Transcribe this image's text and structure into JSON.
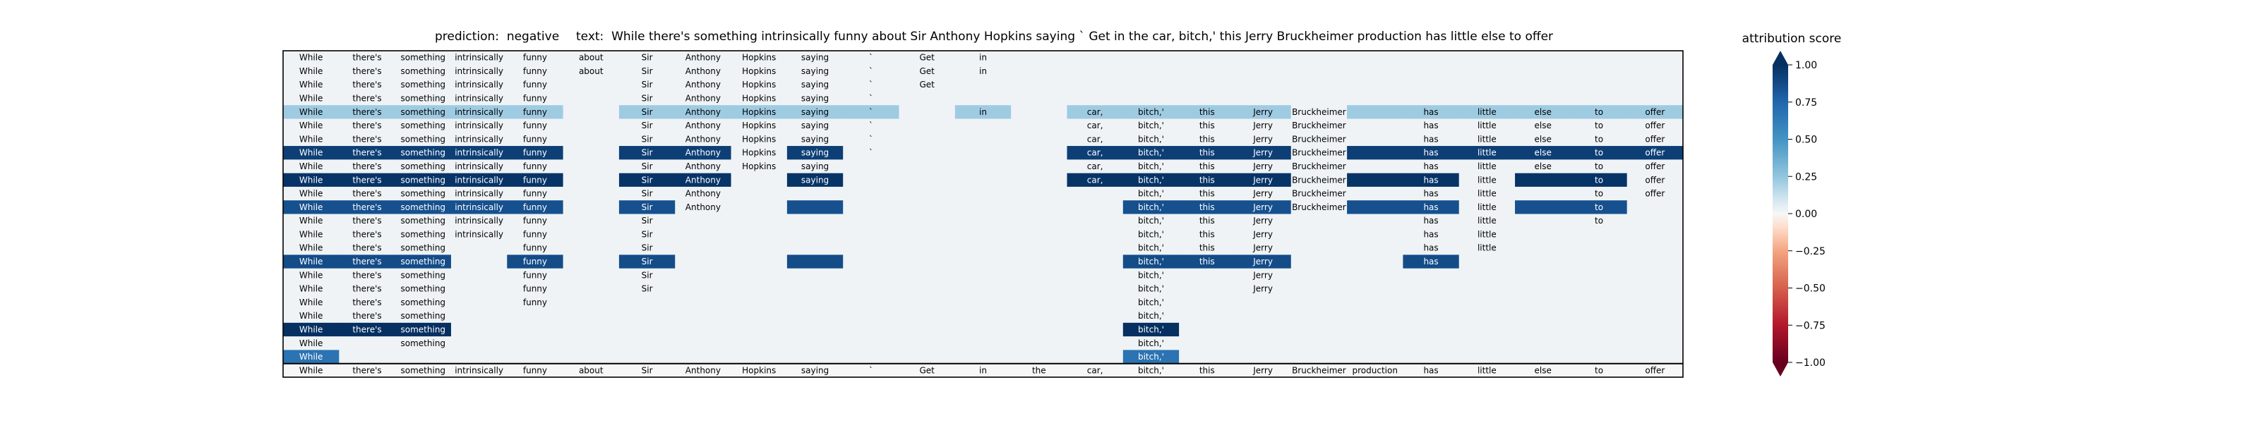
{
  "title": {
    "prediction": "prediction:  negative",
    "text": "text:  While there's something intrinsically funny about Sir Anthony Hopkins saying ` Get in the car, bitch,' this Jerry Bruckheimer production has little else to offer"
  },
  "colorbar": {
    "title": "attribution score",
    "ticks": [
      "1.00",
      "0.75",
      "0.50",
      "0.25",
      "0.00",
      "−0.25",
      "−0.50",
      "−0.75",
      "−1.00"
    ],
    "range": [
      -1,
      1
    ],
    "colormap": "RdBu"
  },
  "chart_data": {
    "type": "heatmap",
    "tokens": [
      "While",
      "there's",
      "something",
      "intrinsically",
      "funny",
      "about",
      "Sir",
      "Anthony",
      "Hopkins",
      "saying",
      "`",
      "Get",
      "in",
      "the",
      "car,",
      "bitch,'",
      "this",
      "Jerry",
      "Bruckheimer",
      "production",
      "has",
      "little",
      "else",
      "to",
      "offer"
    ],
    "masks": [
      "1111111111111000000000000",
      "1111111111111000000000000",
      "1111101111110000000000000",
      "1111101111100000000000000",
      "1111101111101011111011111",
      "1111101111100011111011111",
      "1111101111100011111011111",
      "1111101111100011111011111",
      "1111101111000011111011111",
      "1111101101000011111011011",
      "1111101100000001111011011",
      "1111101100000001111011010",
      "1111101000000001110011010",
      "1111101000000001110011000",
      "1110101000000001110011000",
      "1110101000000001110010000",
      "1110101000000001010000000",
      "1110101000000001010000000",
      "1110100000000001000000000",
      "1110000000000001000000000",
      "1110000000000001000000000",
      "1010000000000001000000000",
      "1000000000000001000000000",
      "1111111111111111111111111"
    ],
    "scores": [
      [
        0.02,
        0.02,
        0.02,
        0.02,
        0.02,
        0.02,
        0.02,
        0.02,
        0.02,
        0.02,
        0.02,
        0.02,
        0.02,
        0.02,
        0.02,
        0.02,
        0.02,
        0.02,
        0.02,
        0.02,
        0.02,
        0.02,
        0.02,
        0.02,
        0.02
      ],
      [
        0.02,
        0.02,
        0.02,
        0.02,
        0.02,
        0.02,
        0.02,
        0.02,
        0.02,
        0.02,
        0.02,
        0.02,
        0.02,
        0.02,
        0.02,
        0.02,
        0.02,
        0.02,
        0.02,
        0.02,
        0.02,
        0.02,
        0.02,
        0.02,
        0.02
      ],
      [
        0.02,
        0.02,
        0.02,
        0.02,
        0.02,
        0.02,
        0.02,
        0.02,
        0.02,
        0.02,
        0.02,
        0.02,
        0.02,
        0.02,
        0.02,
        0.02,
        0.02,
        0.02,
        0.02,
        0.02,
        0.02,
        0.02,
        0.02,
        0.02,
        0.02
      ],
      [
        0.02,
        0.02,
        0.02,
        0.02,
        0.02,
        0.02,
        0.02,
        0.02,
        0.02,
        0.02,
        0.02,
        0.02,
        0.02,
        0.02,
        0.02,
        0.02,
        0.02,
        0.02,
        0.02,
        0.02,
        0.02,
        0.02,
        0.02,
        0.02,
        0.02
      ],
      [
        0.22,
        0.22,
        0.22,
        0.22,
        0.22,
        0.02,
        0.22,
        0.22,
        0.22,
        0.22,
        0.22,
        0.02,
        0.22,
        0.02,
        0.22,
        0.22,
        0.22,
        0.22,
        0.02,
        0.22,
        0.22,
        0.22,
        0.22,
        0.22,
        0.22
      ],
      [
        0.02,
        0.02,
        0.02,
        0.02,
        0.02,
        0.02,
        0.02,
        0.02,
        0.02,
        0.02,
        0.02,
        0.02,
        0.02,
        0.02,
        0.02,
        0.02,
        0.02,
        0.02,
        0.02,
        0.02,
        0.02,
        0.02,
        0.02,
        0.02,
        0.02
      ],
      [
        0.02,
        0.02,
        0.02,
        0.02,
        0.02,
        0.02,
        0.02,
        0.02,
        0.02,
        0.02,
        0.02,
        0.02,
        0.02,
        0.02,
        0.02,
        0.02,
        0.02,
        0.02,
        0.02,
        0.02,
        0.02,
        0.02,
        0.02,
        0.02,
        0.02
      ],
      [
        0.93,
        0.93,
        0.93,
        0.93,
        0.93,
        0.02,
        0.93,
        0.93,
        0.02,
        0.93,
        0.02,
        0.02,
        0.02,
        0.02,
        0.93,
        0.93,
        0.93,
        0.93,
        0.02,
        0.93,
        0.93,
        0.93,
        0.93,
        0.93,
        0.93
      ],
      [
        0.02,
        0.02,
        0.02,
        0.02,
        0.02,
        0.02,
        0.02,
        0.02,
        0.02,
        0.02,
        0.02,
        0.02,
        0.02,
        0.02,
        0.02,
        0.02,
        0.02,
        0.02,
        0.02,
        0.02,
        0.02,
        0.02,
        0.02,
        0.02,
        0.02
      ],
      [
        0.98,
        0.98,
        0.98,
        0.98,
        0.98,
        0.02,
        0.98,
        0.98,
        0.02,
        0.98,
        0.02,
        0.02,
        0.02,
        0.02,
        0.98,
        0.98,
        0.98,
        0.98,
        0.02,
        0.98,
        0.98,
        0.02,
        0.98,
        0.98,
        0.02
      ],
      [
        0.02,
        0.02,
        0.02,
        0.02,
        0.02,
        0.02,
        0.02,
        0.02,
        0.02,
        0.02,
        0.02,
        0.02,
        0.02,
        0.02,
        0.02,
        0.02,
        0.02,
        0.02,
        0.02,
        0.02,
        0.02,
        0.02,
        0.02,
        0.02,
        0.02
      ],
      [
        0.85,
        0.85,
        0.85,
        0.85,
        0.85,
        0.02,
        0.85,
        0.02,
        0.02,
        0.85,
        0.02,
        0.02,
        0.02,
        0.02,
        0.02,
        0.85,
        0.85,
        0.85,
        0.02,
        0.85,
        0.85,
        0.02,
        0.85,
        0.85,
        0.02
      ],
      [
        0.02,
        0.02,
        0.02,
        0.02,
        0.02,
        0.02,
        0.02,
        0.02,
        0.02,
        0.02,
        0.02,
        0.02,
        0.02,
        0.02,
        0.02,
        0.02,
        0.02,
        0.02,
        0.02,
        0.02,
        0.02,
        0.02,
        0.02,
        0.02,
        0.02
      ],
      [
        0.02,
        0.02,
        0.02,
        0.02,
        0.02,
        0.02,
        0.02,
        0.02,
        0.02,
        0.02,
        0.02,
        0.02,
        0.02,
        0.02,
        0.02,
        0.02,
        0.02,
        0.02,
        0.02,
        0.02,
        0.02,
        0.02,
        0.02,
        0.02,
        0.02
      ],
      [
        0.02,
        0.02,
        0.02,
        0.02,
        0.02,
        0.02,
        0.02,
        0.02,
        0.02,
        0.02,
        0.02,
        0.02,
        0.02,
        0.02,
        0.02,
        0.02,
        0.02,
        0.02,
        0.02,
        0.02,
        0.02,
        0.02,
        0.02,
        0.02,
        0.02
      ],
      [
        0.87,
        0.87,
        0.87,
        0.02,
        0.87,
        0.02,
        0.87,
        0.02,
        0.02,
        0.87,
        0.02,
        0.02,
        0.02,
        0.02,
        0.02,
        0.87,
        0.87,
        0.87,
        0.02,
        0.02,
        0.87,
        0.02,
        0.02,
        0.02,
        0.02
      ],
      [
        0.02,
        0.02,
        0.02,
        0.02,
        0.02,
        0.02,
        0.02,
        0.02,
        0.02,
        0.02,
        0.02,
        0.02,
        0.02,
        0.02,
        0.02,
        0.02,
        0.02,
        0.02,
        0.02,
        0.02,
        0.02,
        0.02,
        0.02,
        0.02,
        0.02
      ],
      [
        0.02,
        0.02,
        0.02,
        0.02,
        0.02,
        0.02,
        0.02,
        0.02,
        0.02,
        0.02,
        0.02,
        0.02,
        0.02,
        0.02,
        0.02,
        0.02,
        0.02,
        0.02,
        0.02,
        0.02,
        0.02,
        0.02,
        0.02,
        0.02,
        0.02
      ],
      [
        0.02,
        0.02,
        0.02,
        0.02,
        0.02,
        0.02,
        0.02,
        0.02,
        0.02,
        0.02,
        0.02,
        0.02,
        0.02,
        0.02,
        0.02,
        0.02,
        0.02,
        0.02,
        0.02,
        0.02,
        0.02,
        0.02,
        0.02,
        0.02,
        0.02
      ],
      [
        0.02,
        0.02,
        0.02,
        0.02,
        0.02,
        0.02,
        0.02,
        0.02,
        0.02,
        0.02,
        0.02,
        0.02,
        0.02,
        0.02,
        0.02,
        0.02,
        0.02,
        0.02,
        0.02,
        0.02,
        0.02,
        0.02,
        0.02,
        0.02,
        0.02
      ],
      [
        1.0,
        1.0,
        1.0,
        0.02,
        0.02,
        0.02,
        0.02,
        0.02,
        0.02,
        0.02,
        0.02,
        0.02,
        0.02,
        0.02,
        0.02,
        1.0,
        0.02,
        0.02,
        0.02,
        0.02,
        0.02,
        0.02,
        0.02,
        0.02,
        0.02
      ],
      [
        0.02,
        0.02,
        0.02,
        0.02,
        0.02,
        0.02,
        0.02,
        0.02,
        0.02,
        0.02,
        0.02,
        0.02,
        0.02,
        0.02,
        0.02,
        0.02,
        0.02,
        0.02,
        0.02,
        0.02,
        0.02,
        0.02,
        0.02,
        0.02,
        0.02
      ],
      [
        0.68,
        0.02,
        0.02,
        0.02,
        0.02,
        0.02,
        0.02,
        0.02,
        0.02,
        0.02,
        0.02,
        0.02,
        0.02,
        0.02,
        0.02,
        0.68,
        0.02,
        0.02,
        0.02,
        0.02,
        0.02,
        0.02,
        0.02,
        0.02,
        0.02
      ],
      [
        0.0,
        0.0,
        0.0,
        0.0,
        0.0,
        0.0,
        0.0,
        0.0,
        0.0,
        0.0,
        0.0,
        0.0,
        0.0,
        0.0,
        0.0,
        0.0,
        0.0,
        0.0,
        0.0,
        0.0,
        0.0,
        0.0,
        0.0,
        0.0,
        0.0
      ]
    ]
  }
}
